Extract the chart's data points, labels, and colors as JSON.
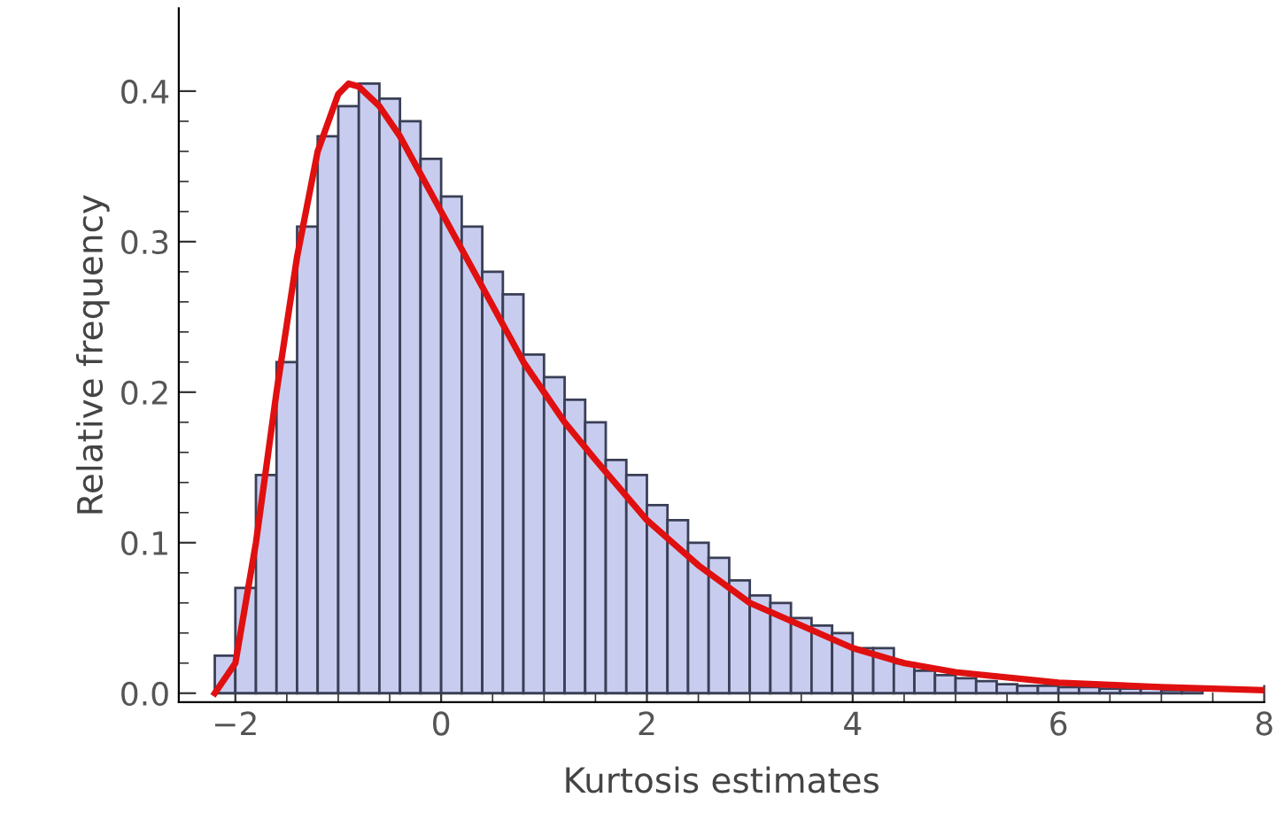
{
  "chart_data": {
    "type": "histogram",
    "xlabel": "Kurtosis estimates",
    "ylabel": "Relative frequency",
    "bins": [
      -2.2,
      -2.0,
      -1.8,
      -1.6,
      -1.4,
      -1.2,
      -1.0,
      -0.8,
      -0.6,
      -0.4,
      -0.2,
      0.0,
      0.2,
      0.4,
      0.6,
      0.8,
      1.0,
      1.2,
      1.4,
      1.6,
      1.8,
      2.0,
      2.2,
      2.4,
      2.6,
      2.8,
      3.0,
      3.2,
      3.4,
      3.6,
      3.8,
      4.0,
      4.2,
      4.4,
      4.6,
      4.8,
      5.0,
      5.2,
      5.4,
      5.6,
      5.8,
      6.0,
      6.2,
      6.4,
      6.6,
      6.8,
      7.0,
      7.2,
      7.4,
      7.6,
      7.8,
      8.0
    ],
    "values": [
      0.025,
      0.07,
      0.145,
      0.22,
      0.31,
      0.37,
      0.39,
      0.405,
      0.395,
      0.38,
      0.355,
      0.33,
      0.31,
      0.28,
      0.265,
      0.225,
      0.21,
      0.195,
      0.18,
      0.155,
      0.145,
      0.125,
      0.115,
      0.1,
      0.09,
      0.075,
      0.065,
      0.06,
      0.05,
      0.045,
      0.04,
      0.03,
      0.03,
      0.02,
      0.015,
      0.012,
      0.01,
      0.008,
      0.006,
      0.005,
      0.005,
      0.004,
      0.004,
      0.003,
      0.003,
      0.003,
      0.002,
      0.002,
      null,
      null,
      null
    ],
    "color": "#c8cdf0",
    "series": [
      {
        "type": "line",
        "color": "#e01010",
        "x": [
          -2.2,
          -2.0,
          -1.8,
          -1.6,
          -1.4,
          -1.2,
          -1.0,
          -0.9,
          -0.8,
          -0.6,
          -0.4,
          -0.2,
          0.0,
          0.2,
          0.4,
          0.6,
          0.8,
          1.0,
          1.2,
          1.5,
          2.0,
          2.5,
          3.0,
          3.5,
          4.0,
          4.5,
          5.0,
          6.0,
          7.0,
          8.0
        ],
        "values": [
          0.0,
          0.02,
          0.1,
          0.2,
          0.29,
          0.36,
          0.398,
          0.405,
          0.403,
          0.39,
          0.37,
          0.345,
          0.32,
          0.295,
          0.27,
          0.245,
          0.22,
          0.2,
          0.18,
          0.155,
          0.115,
          0.085,
          0.06,
          0.045,
          0.03,
          0.02,
          0.014,
          0.007,
          0.004,
          0.002
        ]
      }
    ],
    "xlim": [
      -2.55,
      8.0
    ],
    "ylim": [
      -0.006,
      0.455
    ],
    "xticks": [
      {
        "value": -2,
        "label": "−2"
      },
      0,
      2,
      4,
      6,
      8
    ],
    "yticks": [
      {
        "value": 0,
        "label": "0.0"
      },
      0.1,
      0.2,
      0.3,
      0.4
    ],
    "grid": false,
    "legend": false
  }
}
